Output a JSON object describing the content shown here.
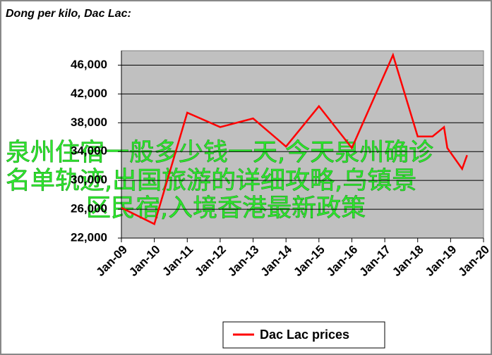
{
  "chart_data": {
    "type": "line",
    "title": "Dong per kilo, Dac Lac:",
    "x": [
      2009.0,
      2010.0,
      2011.0,
      2012.0,
      2013.0,
      2014.0,
      2015.0,
      2016.0,
      2017.25,
      2018.0,
      2018.45,
      2018.8,
      2018.9,
      2019.35,
      2019.5
    ],
    "series": [
      {
        "name": "Dac Lac prices",
        "color": "#ff0000",
        "values": [
          26200,
          23950,
          39400,
          37400,
          38600,
          34700,
          40300,
          34500,
          47400,
          36100,
          36100,
          37400,
          34500,
          31600,
          33500
        ]
      }
    ],
    "xlim": [
      2009,
      2020
    ],
    "xticks": [
      {
        "value": 2009,
        "label": "Jan-09"
      },
      {
        "value": 2010,
        "label": "Jan-10"
      },
      {
        "value": 2011,
        "label": "Jan-11"
      },
      {
        "value": 2012,
        "label": "Jan-12"
      },
      {
        "value": 2013,
        "label": "Jan-13"
      },
      {
        "value": 2014,
        "label": "Jan-14"
      },
      {
        "value": 2015,
        "label": "Jan-15"
      },
      {
        "value": 2016,
        "label": "Jan-16"
      },
      {
        "value": 2017,
        "label": "Jan-17"
      },
      {
        "value": 2018,
        "label": "Jan-18"
      },
      {
        "value": 2019,
        "label": "Jan-19"
      },
      {
        "value": 2020,
        "label": "Jan-20"
      }
    ],
    "ylim": [
      22000,
      48000
    ],
    "yticks": [
      {
        "value": 22000,
        "label": "22,000"
      },
      {
        "value": 26000,
        "label": "26,000"
      },
      {
        "value": 30000,
        "label": "30,000"
      },
      {
        "value": 34000,
        "label": "34,000"
      },
      {
        "value": 38000,
        "label": "38,000"
      },
      {
        "value": 42000,
        "label": "42,000"
      },
      {
        "value": 46000,
        "label": "46,000"
      }
    ],
    "grid": true
  },
  "overlay_text": [
    "泉州住宿一般多少钱一天,今天泉州确诊",
    "名单轨迹,出国旅游的详细攻略,乌镇景",
    "区民宿,入境香港最新政策"
  ]
}
